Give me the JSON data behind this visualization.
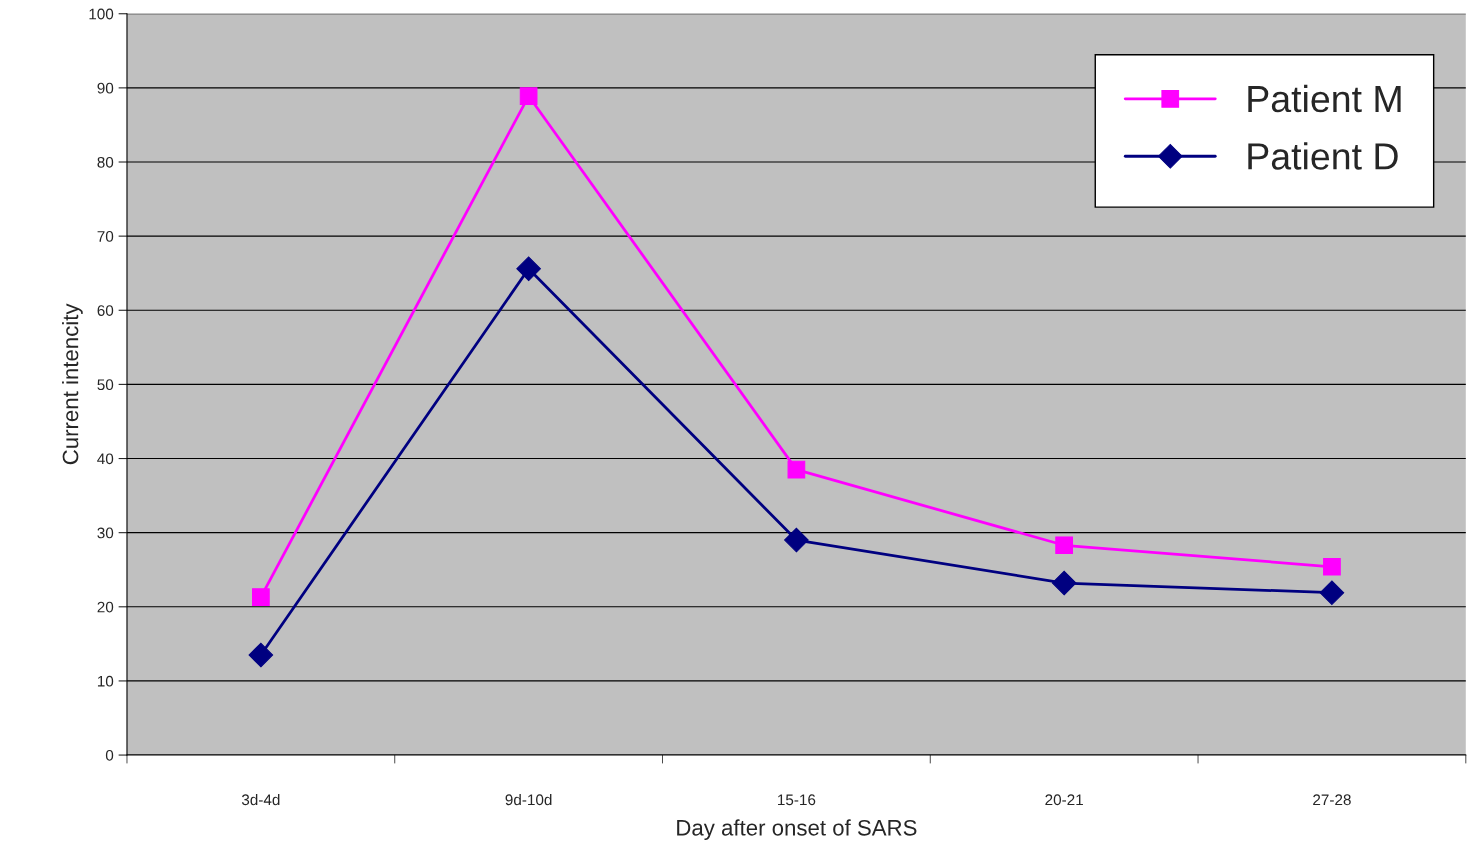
{
  "chart_data": {
    "type": "line",
    "xlabel": "Day after onset of SARS",
    "ylabel": "Current intencity",
    "categories": [
      "3d-4d",
      "9d-10d",
      "15-16",
      "20-21",
      "27-28"
    ],
    "series": [
      {
        "name": "Patient M",
        "color": "#ff00ff",
        "marker": "square",
        "values": [
          21.3,
          88.9,
          38.5,
          28.3,
          25.4
        ]
      },
      {
        "name": "Patient D",
        "color": "#000080",
        "marker": "diamond",
        "values": [
          13.5,
          65.6,
          29.0,
          23.2,
          21.9
        ]
      }
    ],
    "ylim": [
      0,
      100
    ],
    "yticks": [
      0,
      10,
      20,
      30,
      40,
      50,
      60,
      70,
      80,
      90,
      100
    ],
    "grid": "y",
    "legend": "top right",
    "line_style": "solid"
  }
}
